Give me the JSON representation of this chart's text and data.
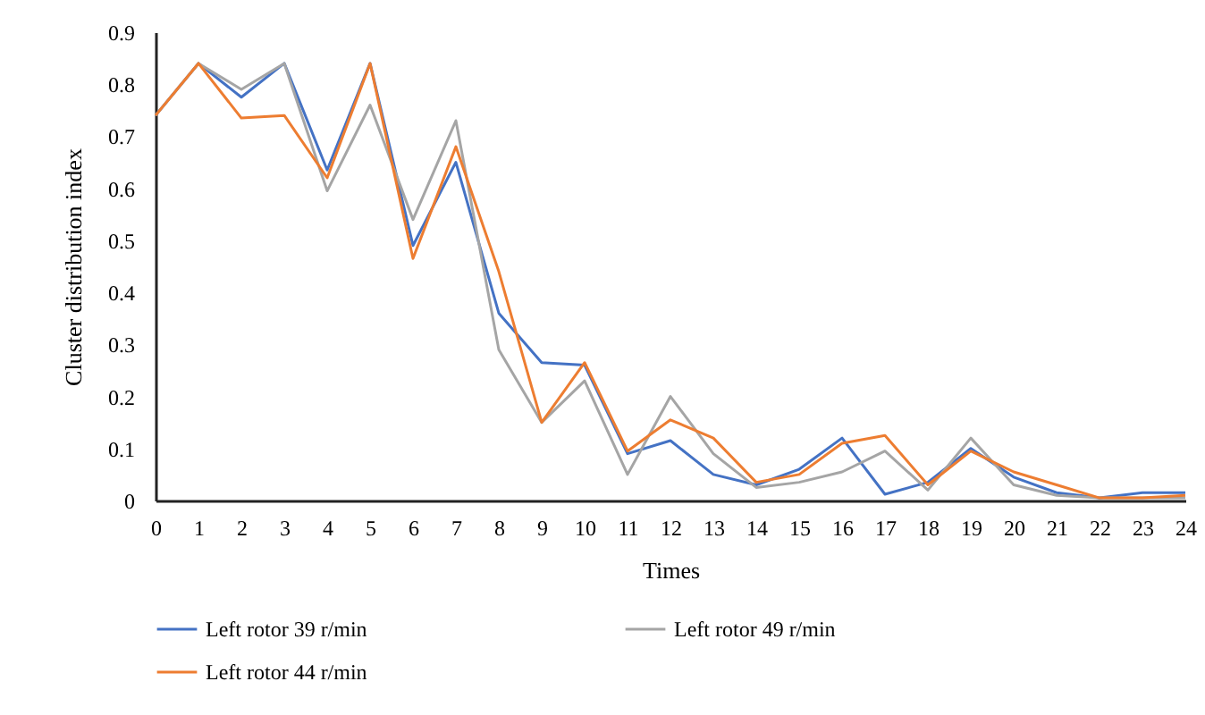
{
  "chart_data": {
    "type": "line",
    "xlabel": "Times",
    "ylabel": "Cluster distribution index",
    "x": [
      0,
      1,
      2,
      3,
      4,
      5,
      6,
      7,
      8,
      9,
      10,
      11,
      12,
      13,
      14,
      15,
      16,
      17,
      18,
      19,
      20,
      21,
      22,
      23,
      24
    ],
    "series": [
      {
        "name": "Left rotor 39 r/min",
        "color": "#4472c4",
        "values": [
          0.74,
          0.84,
          0.775,
          0.84,
          0.635,
          0.84,
          0.49,
          0.65,
          0.36,
          0.265,
          0.26,
          0.09,
          0.115,
          0.05,
          0.03,
          0.06,
          0.12,
          0.012,
          0.035,
          0.1,
          0.045,
          0.015,
          0.005,
          0.015,
          0.015
        ]
      },
      {
        "name": "Left rotor 49 r/min",
        "color": "#a5a5a5",
        "values": [
          0.74,
          0.84,
          0.79,
          0.84,
          0.595,
          0.76,
          0.54,
          0.73,
          0.29,
          0.15,
          0.23,
          0.05,
          0.2,
          0.09,
          0.025,
          0.035,
          0.055,
          0.095,
          0.02,
          0.12,
          0.03,
          0.01,
          0.005,
          0.005,
          0.005
        ]
      },
      {
        "name": "Left rotor 44 r/min",
        "color": "#ed7d31",
        "values": [
          0.74,
          0.84,
          0.735,
          0.74,
          0.62,
          0.84,
          0.465,
          0.68,
          0.44,
          0.15,
          0.265,
          0.095,
          0.155,
          0.12,
          0.035,
          0.05,
          0.11,
          0.125,
          0.03,
          0.095,
          0.055,
          0.03,
          0.005,
          0.005,
          0.01
        ]
      }
    ],
    "xlim": [
      0,
      24
    ],
    "xticks": [
      0,
      1,
      2,
      3,
      4,
      5,
      6,
      7,
      8,
      9,
      10,
      11,
      12,
      13,
      14,
      15,
      16,
      17,
      18,
      19,
      20,
      21,
      22,
      23,
      24
    ],
    "ylim": [
      0,
      0.9
    ],
    "yticks": [
      0,
      0.1,
      0.2,
      0.3,
      0.4,
      0.5,
      0.6,
      0.7,
      0.8,
      0.9
    ],
    "grid": false,
    "legend": "bottom",
    "marker": "none",
    "line_style": "solid"
  }
}
